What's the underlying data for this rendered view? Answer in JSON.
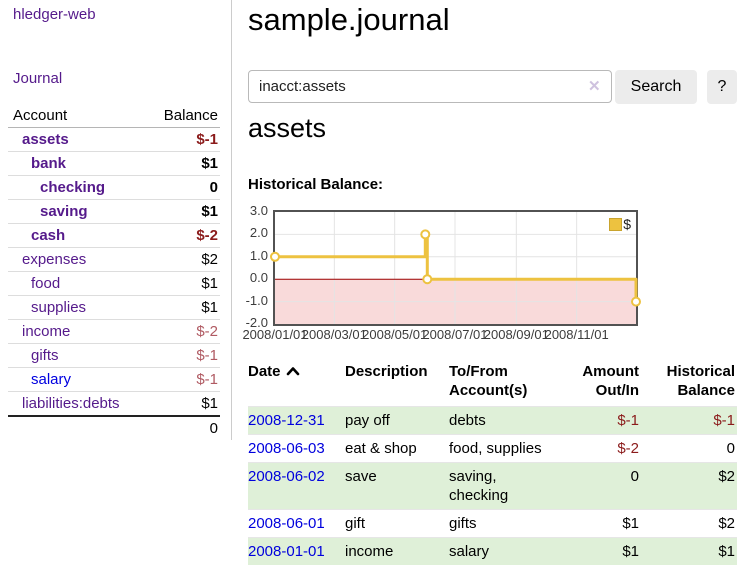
{
  "sidebar": {
    "app_title": "hledger-web",
    "journal_label": "Journal",
    "accounts_table": {
      "headers": {
        "account": "Account",
        "balance": "Balance"
      },
      "rows": [
        {
          "name": "assets",
          "balance": "$-1",
          "level": 1,
          "bold": true,
          "bal_class": "neg-strong",
          "link_class": ""
        },
        {
          "name": "bank",
          "balance": "$1",
          "level": 2,
          "bold": true,
          "bal_class": "",
          "link_class": ""
        },
        {
          "name": "checking",
          "balance": "0",
          "level": 3,
          "bold": true,
          "bal_class": "",
          "link_class": ""
        },
        {
          "name": "saving",
          "balance": "$1",
          "level": 3,
          "bold": true,
          "bal_class": "",
          "link_class": ""
        },
        {
          "name": "cash",
          "balance": "$-2",
          "level": 2,
          "bold": true,
          "bal_class": "neg-strong",
          "link_class": ""
        },
        {
          "name": "expenses",
          "balance": "$2",
          "level": 1,
          "bold": false,
          "bal_class": "",
          "link_class": ""
        },
        {
          "name": "food",
          "balance": "$1",
          "level": 2,
          "bold": false,
          "bal_class": "",
          "link_class": ""
        },
        {
          "name": "supplies",
          "balance": "$1",
          "level": 2,
          "bold": false,
          "bal_class": "",
          "link_class": ""
        },
        {
          "name": "income",
          "balance": "$-2",
          "level": 1,
          "bold": false,
          "bal_class": "neg-muted",
          "link_class": ""
        },
        {
          "name": "gifts",
          "balance": "$-1",
          "level": 2,
          "bold": false,
          "bal_class": "neg-muted",
          "link_class": ""
        },
        {
          "name": "salary",
          "balance": "$-1",
          "level": 2,
          "bold": false,
          "bal_class": "neg-muted",
          "link_class": "blue"
        },
        {
          "name": "liabilities:debts",
          "balance": "$1",
          "level": 1,
          "bold": false,
          "bal_class": "",
          "link_class": ""
        }
      ],
      "total": "0"
    }
  },
  "main": {
    "title": "sample.journal",
    "search": {
      "value": "inacct:assets",
      "clear_icon": "✕",
      "button_label": "Search",
      "help_label": "?"
    },
    "section_heading": "assets",
    "chart_label": "Historical Balance:",
    "register_table": {
      "headers": {
        "date": "Date",
        "description": "Description",
        "accounts": "To/From Account(s)",
        "amount": "Amount Out/In",
        "balance": "Historical Balance"
      },
      "rows": [
        {
          "date": "2008-12-31",
          "description": "pay off",
          "accounts": "debts",
          "amount": "$-1",
          "amount_neg": true,
          "balance": "$-1",
          "balance_neg": true,
          "highlight": true
        },
        {
          "date": "2008-06-03",
          "description": "eat & shop",
          "accounts": "food, supplies",
          "amount": "$-2",
          "amount_neg": true,
          "balance": "0",
          "balance_neg": false,
          "highlight": false
        },
        {
          "date": "2008-06-02",
          "description": "save",
          "accounts": "saving, checking",
          "amount": "0",
          "amount_neg": false,
          "balance": "$2",
          "balance_neg": false,
          "highlight": true
        },
        {
          "date": "2008-06-01",
          "description": "gift",
          "accounts": "gifts",
          "amount": "$1",
          "amount_neg": false,
          "balance": "$2",
          "balance_neg": false,
          "highlight": false
        },
        {
          "date": "2008-01-01",
          "description": "income",
          "accounts": "salary",
          "amount": "$1",
          "amount_neg": false,
          "balance": "$1",
          "balance_neg": false,
          "highlight": true
        }
      ]
    }
  },
  "chart_data": {
    "type": "line",
    "title": "Historical Balance:",
    "step": true,
    "series": [
      {
        "name": "$",
        "color": "#edc240",
        "points": [
          [
            "2008-01-01",
            1
          ],
          [
            "2008-06-01",
            2
          ],
          [
            "2008-06-03",
            0
          ],
          [
            "2008-12-31",
            -1
          ]
        ]
      }
    ],
    "xlim": [
      "2008-01-01",
      "2008-12-31"
    ],
    "ylim": [
      -2,
      3
    ],
    "x_ticks": [
      "2008/01/01",
      "2008/03/01",
      "2008/05/01",
      "2008/07/01",
      "2008/09/01",
      "2008/11/01"
    ],
    "y_ticks": [
      "3.0",
      "2.0",
      "1.0",
      "0.0",
      "-1.0",
      "-2.0"
    ],
    "legend": "$",
    "legend_position": "top-right",
    "grid": true,
    "negative_fill": "#f9dada",
    "zero_line_color": "#9c0000",
    "grid_color": "#e4e4e4",
    "marker_fill": "#ffffff"
  }
}
